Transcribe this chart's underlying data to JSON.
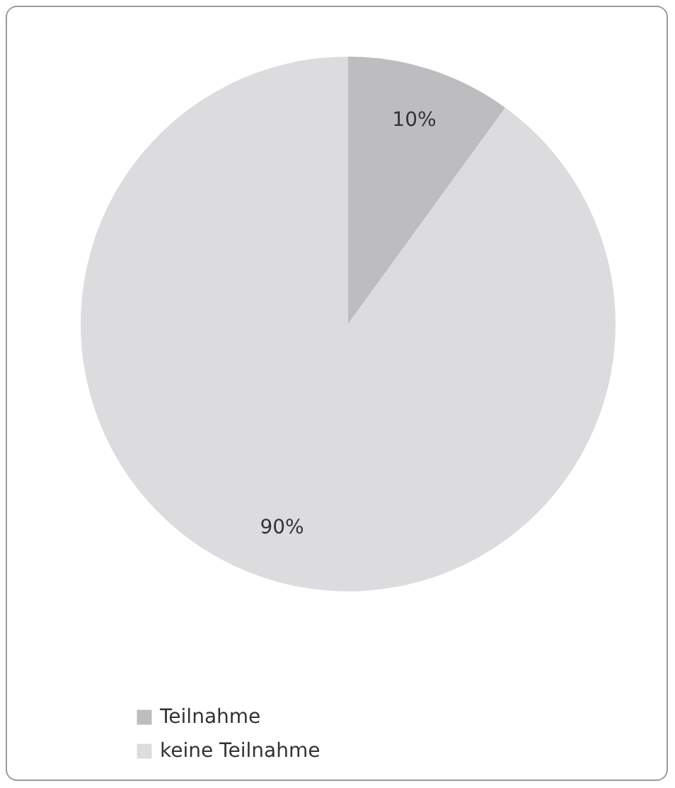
{
  "chart_data": {
    "type": "pie",
    "categories": [
      "Teilnahme",
      "keine Teilnahme"
    ],
    "values": [
      10,
      90
    ],
    "colors": [
      "#bdbdc0",
      "#dcdcde"
    ],
    "value_labels": [
      "10%",
      "90%"
    ],
    "legend": "bottom left"
  }
}
